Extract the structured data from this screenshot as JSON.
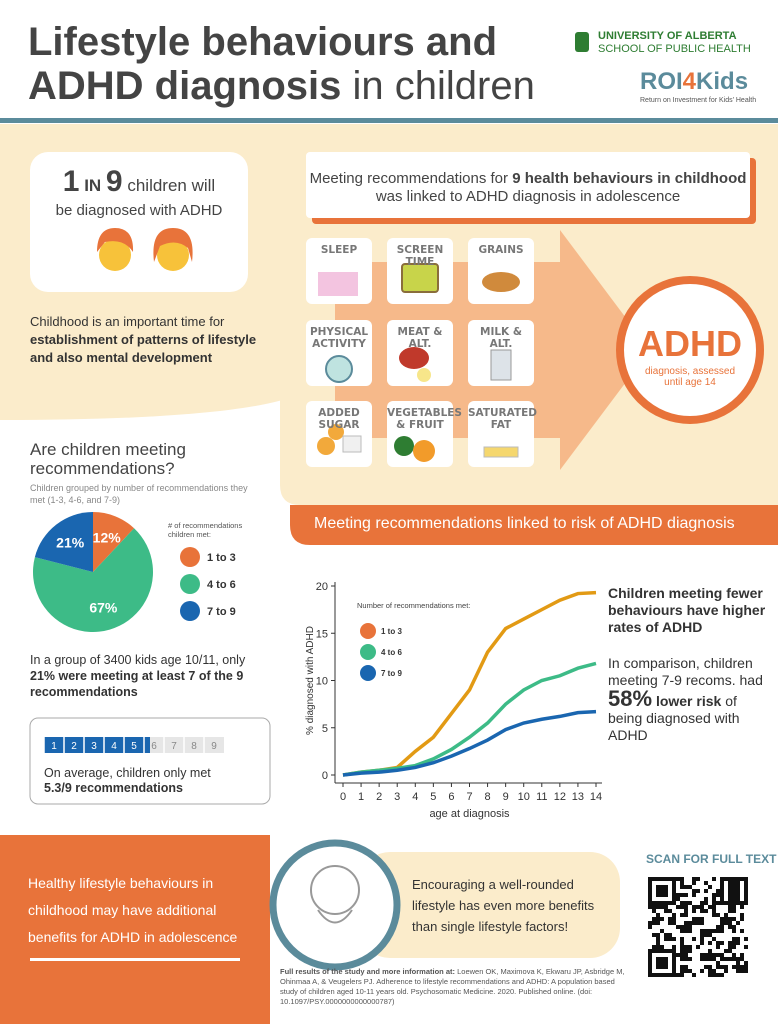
{
  "header": {
    "title_line1": "Lifestyle behaviours and",
    "title_line2_bold": "ADHD diagnosis",
    "title_line2_light": "in children"
  },
  "logos": {
    "university": "UNIVERSITY OF ALBERTA",
    "school": "SCHOOL OF PUBLIC HEALTH",
    "roi_a": "ROI",
    "roi_b": "4",
    "roi_c": "Kids",
    "roi_tagline": "Return on Investment for Kids' Health"
  },
  "stat_card": {
    "one": "1",
    "in": "IN",
    "nine": "9",
    "line1": "children will",
    "line2": "be diagnosed with ADHD"
  },
  "intro": {
    "text": "Childhood is an important time for",
    "bold": "establishment of patterns of lifestyle and also mental development"
  },
  "behaviours": {
    "heading_a": "Meeting recommendations for",
    "heading_bold": "9 health behaviours in childhood",
    "heading_b": "was linked to ADHD diagnosis in adolescence",
    "items": [
      "SLEEP",
      "SCREEN TIME",
      "GRAINS",
      "PHYSICAL ACTIVITY",
      "MEAT & ALT.",
      "MILK & ALT.",
      "ADDED SUGAR",
      "VEGETABLES & FRUIT",
      "SATURATED FAT"
    ],
    "outcome_title": "ADHD",
    "outcome_text": "diagnosis, assessed until age 14"
  },
  "pie": {
    "type": "pie",
    "title": "Are children meeting recommendations?",
    "subtitle": "Children grouped by number of recommendations they met (1-3, 4-6, and 7-9)",
    "legend_title": "# of recommendations children met:",
    "categories": [
      "1 to 3",
      "4 to 6",
      "7 to 9"
    ],
    "values": [
      12,
      67,
      21
    ],
    "value_labels": [
      "12%",
      "67%",
      "21%"
    ],
    "colors": [
      "#e8733a",
      "#3dbb87",
      "#1a66b0"
    ]
  },
  "pie_note": {
    "text": "In a group of 3400 kids age 10/11, only",
    "bold": "21% were meeting at least 7 of the 9 recommendations"
  },
  "recommendation_bar": {
    "numbers": [
      "1",
      "2",
      "3",
      "4",
      "5",
      "6",
      "7",
      "8",
      "9"
    ],
    "average": 5.3,
    "total": 9,
    "text": "On average, children only met",
    "bold": "5.3/9 recommendations"
  },
  "banner": "Meeting recommendations linked to risk of ADHD diagnosis",
  "chart": {
    "type": "line",
    "ylabel": "% diagnosed with ADHD",
    "xlabel": "age at diagnosis",
    "legend_title": "Number of recommendations met:",
    "x": [
      0,
      1,
      2,
      3,
      4,
      5,
      6,
      7,
      8,
      9,
      10,
      11,
      12,
      13,
      14
    ],
    "xlim": [
      0,
      14
    ],
    "ylim": [
      0,
      20
    ],
    "xticks": [
      0,
      1,
      2,
      3,
      4,
      5,
      6,
      7,
      8,
      9,
      10,
      11,
      12,
      13,
      14
    ],
    "yticks": [
      0,
      5,
      10,
      15,
      20
    ],
    "series": [
      {
        "name": "1 to 3",
        "color": "#e29a14",
        "values": [
          0,
          0.3,
          0.5,
          0.8,
          2.5,
          4,
          6.5,
          9,
          13,
          15.5,
          16.5,
          17.5,
          18.5,
          19.2,
          19.3
        ]
      },
      {
        "name": "4 to 6",
        "color": "#3dbb87",
        "values": [
          0,
          0.3,
          0.5,
          0.7,
          1,
          1.7,
          2.7,
          4,
          5.5,
          7.5,
          9,
          10,
          10.5,
          11.3,
          11.8
        ]
      },
      {
        "name": "7 to 9",
        "color": "#1a66b0",
        "values": [
          0,
          0.2,
          0.3,
          0.5,
          0.8,
          1.3,
          2,
          2.8,
          3.7,
          4.8,
          5.5,
          5.9,
          6.2,
          6.6,
          6.7
        ]
      }
    ],
    "legend_colors": [
      "#e8733a",
      "#3dbb87",
      "#1a66b0"
    ]
  },
  "findings": {
    "headline": "Children meeting fewer behaviours have higher rates of ADHD",
    "comparison": "In comparison, children meeting 7-9 recoms. had",
    "percent": "58%",
    "bold": "lower risk",
    "rest": "of being diagnosed with ADHD"
  },
  "footer": {
    "left": "Healthy lifestyle behaviours in childhood may have additional benefits for ADHD in adolescence",
    "middle": "Encouraging a well-rounded lifestyle has even more benefits than single lifestyle factors!",
    "scan": "SCAN FOR FULL TEXT",
    "source_bold": "Full results of the study and more information at:",
    "source": "Loewen OK, Maximova K, Ekwaru JP, Asbridge M, Ohinmaa A, & Veugelers PJ. Adherence to lifestyle recommendations and ADHD: A population based study of children aged 10-11 years old. Psychosomatic Medicine. 2020. Published online. (doi: 10.1097/PSY.0000000000000787)"
  }
}
